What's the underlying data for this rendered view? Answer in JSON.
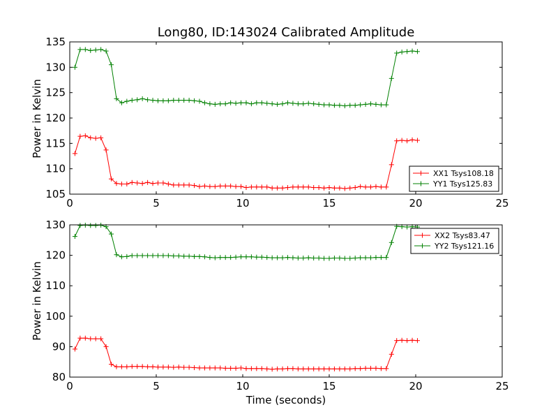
{
  "chart_data": [
    {
      "type": "line",
      "title": "Long80, ID:143024 Calibrated Amplitude",
      "xlabel": "",
      "ylabel": "Power in Kelvin",
      "xlim": [
        0,
        25
      ],
      "ylim": [
        105,
        135
      ],
      "xticks": [
        0,
        5,
        10,
        15,
        20,
        25
      ],
      "yticks": [
        105,
        110,
        115,
        120,
        125,
        130,
        135
      ],
      "x": [
        0.3,
        0.6,
        0.9,
        1.2,
        1.5,
        1.8,
        2.1,
        2.4,
        2.7,
        3.0,
        3.3,
        3.6,
        3.9,
        4.2,
        4.5,
        4.8,
        5.1,
        5.4,
        5.7,
        6.0,
        6.3,
        6.6,
        6.9,
        7.2,
        7.5,
        7.8,
        8.1,
        8.4,
        8.7,
        9.0,
        9.3,
        9.6,
        9.9,
        10.2,
        10.5,
        10.8,
        11.1,
        11.4,
        11.7,
        12.0,
        12.3,
        12.6,
        12.9,
        13.2,
        13.5,
        13.8,
        14.1,
        14.4,
        14.7,
        15.0,
        15.3,
        15.6,
        15.9,
        16.2,
        16.5,
        16.8,
        17.1,
        17.4,
        17.7,
        18.0,
        18.3,
        18.6,
        18.9,
        19.2,
        19.5,
        19.8,
        20.1
      ],
      "series": [
        {
          "name": "XX1 Tsys108.18",
          "color": "#ff0000",
          "values": [
            113.0,
            116.4,
            116.5,
            116.1,
            116.0,
            116.1,
            113.7,
            108.0,
            107.1,
            107.0,
            107.0,
            107.3,
            107.2,
            107.1,
            107.3,
            107.1,
            107.2,
            107.2,
            107.0,
            106.8,
            106.8,
            106.8,
            106.8,
            106.7,
            106.5,
            106.6,
            106.5,
            106.5,
            106.6,
            106.6,
            106.6,
            106.5,
            106.5,
            106.3,
            106.4,
            106.4,
            106.4,
            106.4,
            106.2,
            106.2,
            106.2,
            106.3,
            106.4,
            106.4,
            106.4,
            106.4,
            106.3,
            106.3,
            106.2,
            106.3,
            106.2,
            106.2,
            106.1,
            106.2,
            106.3,
            106.5,
            106.4,
            106.4,
            106.5,
            106.4,
            106.4,
            110.8,
            115.5,
            115.6,
            115.5,
            115.7,
            115.6
          ]
        },
        {
          "name": "YY1 Tsys125.83",
          "color": "#008000",
          "values": [
            130.0,
            133.5,
            133.5,
            133.3,
            133.4,
            133.5,
            133.2,
            130.5,
            123.8,
            123.0,
            123.3,
            123.5,
            123.6,
            123.8,
            123.6,
            123.5,
            123.4,
            123.4,
            123.4,
            123.5,
            123.5,
            123.5,
            123.5,
            123.4,
            123.3,
            123.0,
            122.8,
            122.7,
            122.8,
            122.8,
            123.0,
            122.9,
            123.0,
            123.0,
            122.8,
            123.0,
            123.0,
            122.9,
            122.8,
            122.7,
            122.8,
            123.0,
            122.9,
            122.8,
            122.8,
            122.9,
            122.8,
            122.7,
            122.6,
            122.6,
            122.5,
            122.5,
            122.4,
            122.5,
            122.5,
            122.6,
            122.7,
            122.8,
            122.7,
            122.6,
            122.6,
            127.8,
            132.8,
            133.0,
            133.1,
            133.2,
            133.1
          ]
        }
      ],
      "legend": "bottom-right"
    },
    {
      "type": "line",
      "title": "",
      "xlabel": "Time (seconds)",
      "ylabel": "Power in Kelvin",
      "xlim": [
        0,
        25
      ],
      "ylim": [
        80,
        130
      ],
      "xticks": [
        0,
        5,
        10,
        15,
        20,
        25
      ],
      "yticks": [
        80,
        90,
        100,
        110,
        120,
        130
      ],
      "x": [
        0.3,
        0.6,
        0.9,
        1.2,
        1.5,
        1.8,
        2.1,
        2.4,
        2.7,
        3.0,
        3.3,
        3.6,
        3.9,
        4.2,
        4.5,
        4.8,
        5.1,
        5.4,
        5.7,
        6.0,
        6.3,
        6.6,
        6.9,
        7.2,
        7.5,
        7.8,
        8.1,
        8.4,
        8.7,
        9.0,
        9.3,
        9.6,
        9.9,
        10.2,
        10.5,
        10.8,
        11.1,
        11.4,
        11.7,
        12.0,
        12.3,
        12.6,
        12.9,
        13.2,
        13.5,
        13.8,
        14.1,
        14.4,
        14.7,
        15.0,
        15.3,
        15.6,
        15.9,
        16.2,
        16.5,
        16.8,
        17.1,
        17.4,
        17.7,
        18.0,
        18.3,
        18.6,
        18.9,
        19.2,
        19.5,
        19.8,
        20.1
      ],
      "series": [
        {
          "name": "XX2 Tsys83.47",
          "color": "#ff0000",
          "values": [
            89.2,
            92.8,
            92.8,
            92.6,
            92.6,
            92.6,
            90.0,
            84.2,
            83.4,
            83.4,
            83.4,
            83.5,
            83.5,
            83.5,
            83.4,
            83.4,
            83.3,
            83.3,
            83.3,
            83.2,
            83.3,
            83.2,
            83.2,
            83.1,
            83.0,
            83.0,
            83.0,
            83.0,
            83.0,
            82.9,
            82.9,
            82.9,
            83.0,
            82.8,
            82.8,
            82.8,
            82.8,
            82.7,
            82.6,
            82.7,
            82.7,
            82.8,
            82.8,
            82.7,
            82.7,
            82.7,
            82.7,
            82.7,
            82.7,
            82.7,
            82.7,
            82.7,
            82.7,
            82.7,
            82.8,
            82.8,
            82.9,
            82.9,
            82.9,
            82.8,
            82.8,
            87.5,
            92.0,
            92.1,
            92.0,
            92.1,
            92.0
          ]
        },
        {
          "name": "YY2 Tsys121.16",
          "color": "#008000",
          "values": [
            126.2,
            129.8,
            129.9,
            129.8,
            129.8,
            129.9,
            129.4,
            127.0,
            120.2,
            119.5,
            119.6,
            119.9,
            119.9,
            119.9,
            119.9,
            119.9,
            119.9,
            119.9,
            119.9,
            119.8,
            119.8,
            119.7,
            119.7,
            119.6,
            119.6,
            119.5,
            119.3,
            119.2,
            119.3,
            119.3,
            119.3,
            119.4,
            119.5,
            119.5,
            119.5,
            119.4,
            119.4,
            119.3,
            119.2,
            119.2,
            119.2,
            119.3,
            119.2,
            119.1,
            119.1,
            119.2,
            119.1,
            119.1,
            119.0,
            119.0,
            119.1,
            119.1,
            119.0,
            119.0,
            119.1,
            119.2,
            119.2,
            119.2,
            119.3,
            119.3,
            119.3,
            124.2,
            129.5,
            129.4,
            129.3,
            129.4,
            129.3
          ]
        }
      ],
      "legend": "top-right"
    }
  ]
}
